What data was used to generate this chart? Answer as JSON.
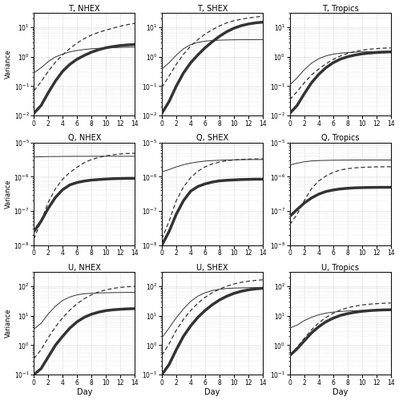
{
  "titles": [
    [
      "T, NHEX",
      "T, SHEX",
      "T, Tropics"
    ],
    [
      "Q, NHEX",
      "Q, SHEX",
      "Q, Tropics"
    ],
    [
      "U, NHEX",
      "U, SHEX",
      "U, Tropics"
    ]
  ],
  "xlabel": "Day",
  "ylabel": "Variance",
  "days": [
    0,
    1,
    2,
    3,
    4,
    5,
    6,
    7,
    8,
    9,
    10,
    11,
    12,
    13,
    14
  ],
  "ylims": [
    [
      [
        0.01,
        30
      ],
      [
        0.01,
        30
      ],
      [
        0.01,
        30
      ]
    ],
    [
      [
        1e-08,
        1e-05
      ],
      [
        1e-08,
        1e-05
      ],
      [
        1e-08,
        1e-05
      ]
    ],
    [
      [
        0.1,
        300
      ],
      [
        0.1,
        300
      ],
      [
        0.1,
        300
      ]
    ]
  ],
  "T_NHEX": {
    "thick": [
      0.012,
      0.022,
      0.06,
      0.15,
      0.32,
      0.55,
      0.82,
      1.1,
      1.42,
      1.72,
      2.0,
      2.2,
      2.38,
      2.5,
      2.58
    ],
    "dashed": [
      0.07,
      0.14,
      0.32,
      0.65,
      1.15,
      1.9,
      2.9,
      4.1,
      5.4,
      6.7,
      7.9,
      9.3,
      10.8,
      12.2,
      13.5
    ],
    "thin": [
      0.28,
      0.42,
      0.68,
      0.98,
      1.22,
      1.45,
      1.62,
      1.75,
      1.85,
      1.92,
      1.97,
      2.02,
      2.06,
      2.09,
      2.11
    ]
  },
  "T_SHEX": {
    "thick": [
      0.012,
      0.03,
      0.1,
      0.28,
      0.62,
      1.15,
      2.0,
      3.2,
      4.9,
      7.0,
      9.2,
      11.2,
      12.8,
      14.0,
      14.8
    ],
    "dashed": [
      0.09,
      0.22,
      0.55,
      1.2,
      2.3,
      3.8,
      5.8,
      8.2,
      11.0,
      14.0,
      16.5,
      18.5,
      20.5,
      22.0,
      23.5
    ],
    "thin": [
      0.38,
      0.62,
      1.12,
      1.85,
      2.55,
      3.05,
      3.35,
      3.52,
      3.62,
      3.68,
      3.72,
      3.74,
      3.76,
      3.77,
      3.77
    ]
  },
  "T_Tropics": {
    "thick": [
      0.012,
      0.022,
      0.055,
      0.13,
      0.25,
      0.42,
      0.62,
      0.82,
      0.99,
      1.13,
      1.24,
      1.32,
      1.38,
      1.42,
      1.45
    ],
    "dashed": [
      0.035,
      0.065,
      0.13,
      0.24,
      0.38,
      0.57,
      0.8,
      1.05,
      1.28,
      1.48,
      1.65,
      1.78,
      1.87,
      1.94,
      1.98
    ],
    "thin": [
      0.11,
      0.19,
      0.36,
      0.6,
      0.85,
      1.06,
      1.21,
      1.31,
      1.38,
      1.42,
      1.45,
      1.47,
      1.49,
      1.5,
      1.5
    ]
  },
  "Q_NHEX": {
    "thick": [
      2.5e-08,
      5e-08,
      1.2e-07,
      2.5e-07,
      4.2e-07,
      5.8e-07,
      6.8e-07,
      7.5e-07,
      8e-07,
      8.3e-07,
      8.6e-07,
      8.8e-07,
      8.9e-07,
      9e-07,
      9e-07
    ],
    "dashed": [
      1.5e-08,
      5e-08,
      1.8e-07,
      4.5e-07,
      8.5e-07,
      1.35e-06,
      1.9e-06,
      2.6e-06,
      3.2e-06,
      3.7e-06,
      4.1e-06,
      4.4e-06,
      4.65e-06,
      4.8e-06,
      4.88e-06
    ],
    "thin": [
      3.8e-06,
      3.85e-06,
      3.9e-06,
      3.92e-06,
      3.94e-06,
      3.96e-06,
      3.97e-06,
      3.97e-06,
      3.98e-06,
      3.98e-06,
      3.98e-06,
      3.98e-06,
      3.98e-06,
      3.98e-06,
      3.98e-06
    ]
  },
  "Q_SHEX": {
    "thick": [
      1e-08,
      2.5e-08,
      8e-08,
      2e-07,
      3.8e-07,
      5.2e-07,
      6.2e-07,
      7e-07,
      7.6e-07,
      7.9e-07,
      8.1e-07,
      8.3e-07,
      8.4e-07,
      8.5e-07,
      8.5e-07
    ],
    "dashed": [
      1.5e-08,
      5e-08,
      2e-07,
      5e-07,
      9.5e-07,
      1.45e-06,
      1.95e-06,
      2.38e-06,
      2.7e-06,
      2.95e-06,
      3.1e-06,
      3.22e-06,
      3.28e-06,
      3.32e-06,
      3.35e-06
    ],
    "thin": [
      1.4e-06,
      1.62e-06,
      1.95e-06,
      2.25e-06,
      2.52e-06,
      2.72e-06,
      2.88e-06,
      2.98e-06,
      3.05e-06,
      3.1e-06,
      3.14e-06,
      3.17e-06,
      3.19e-06,
      3.2e-06,
      3.2e-06
    ]
  },
  "Q_Tropics": {
    "thick": [
      7e-08,
      1.1e-07,
      1.7e-07,
      2.4e-07,
      3.1e-07,
      3.7e-07,
      4.1e-07,
      4.4e-07,
      4.6e-07,
      4.75e-07,
      4.82e-07,
      4.87e-07,
      4.9e-07,
      4.92e-07,
      4.93e-07
    ],
    "dashed": [
      4e-08,
      8e-08,
      2e-07,
      4.5e-07,
      7.5e-07,
      1.05e-06,
      1.35e-06,
      1.58e-06,
      1.72e-06,
      1.82e-06,
      1.88e-06,
      1.92e-06,
      1.95e-06,
      1.96e-06,
      1.97e-06
    ],
    "thin": [
      2.2e-06,
      2.5e-06,
      2.75e-06,
      2.9e-06,
      2.98e-06,
      3.02e-06,
      3.05e-06,
      3.07e-06,
      3.08e-06,
      3.09e-06,
      3.1e-06,
      3.1e-06,
      3.1e-06,
      3.1e-06,
      3.1e-06
    ]
  },
  "U_NHEX": {
    "thick": [
      0.1,
      0.16,
      0.4,
      1.0,
      2.0,
      3.8,
      6.2,
      8.8,
      11.2,
      13.2,
      14.8,
      15.8,
      16.5,
      17.0,
      17.3
    ],
    "dashed": [
      0.35,
      0.7,
      1.8,
      4.2,
      8.5,
      15.5,
      25.5,
      37.5,
      51.0,
      64.0,
      75.0,
      84.0,
      91.0,
      96.0,
      99.0
    ],
    "thin": [
      3.5,
      5.5,
      11.5,
      21.0,
      33.0,
      43.0,
      51.0,
      55.5,
      57.5,
      59.0,
      59.8,
      60.5,
      61.0,
      61.5,
      61.8
    ]
  },
  "U_SHEX": {
    "thick": [
      0.1,
      0.22,
      0.7,
      2.0,
      4.5,
      8.8,
      15.0,
      23.5,
      34.0,
      45.5,
      57.0,
      67.0,
      75.0,
      81.0,
      85.0
    ],
    "dashed": [
      0.45,
      1.1,
      3.2,
      7.5,
      15.0,
      26.5,
      42.0,
      60.0,
      79.5,
      100.0,
      119.0,
      135.0,
      147.0,
      157.0,
      165.0
    ],
    "thin": [
      1.8,
      3.8,
      8.5,
      17.0,
      30.5,
      46.0,
      60.0,
      71.0,
      78.5,
      83.5,
      86.0,
      87.5,
      88.5,
      89.3,
      89.8
    ]
  },
  "U_Tropics": {
    "thick": [
      0.45,
      0.75,
      1.4,
      2.6,
      4.2,
      6.2,
      8.2,
      10.2,
      11.7,
      13.0,
      14.0,
      14.8,
      15.3,
      15.7,
      15.9
    ],
    "dashed": [
      0.45,
      0.85,
      1.7,
      3.3,
      5.7,
      8.6,
      12.0,
      15.5,
      18.5,
      21.0,
      23.0,
      24.5,
      25.5,
      26.3,
      26.8
    ],
    "thin": [
      3.8,
      4.8,
      6.8,
      8.8,
      10.7,
      12.2,
      13.2,
      13.9,
      14.4,
      14.8,
      15.0,
      15.2,
      15.35,
      15.45,
      15.5
    ]
  },
  "line_color": "#333333",
  "bg_color": "#ffffff",
  "grid_color": "#bbbbbb"
}
